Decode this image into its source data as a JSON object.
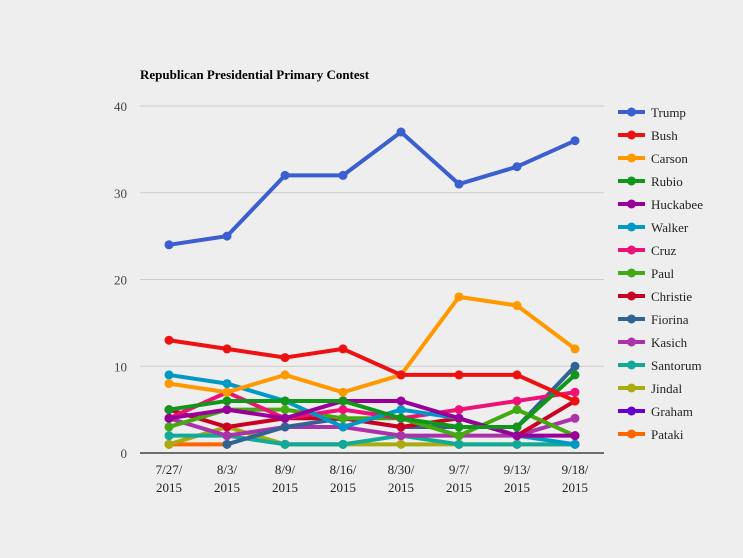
{
  "chart_data": {
    "type": "line",
    "title": "Republican Presidential Primary Contest",
    "xlabel": "",
    "ylabel": "",
    "ylim": [
      0,
      40
    ],
    "yticks": [
      0,
      10,
      20,
      30,
      40
    ],
    "grid": true,
    "legend": "right",
    "categories": [
      [
        "7/27/",
        "2015"
      ],
      [
        "8/3/",
        "2015"
      ],
      [
        "8/9/",
        "2015"
      ],
      [
        "8/16/",
        "2015"
      ],
      [
        "8/30/",
        "2015"
      ],
      [
        "9/7/",
        "2015"
      ],
      [
        "9/13/",
        "2015"
      ],
      [
        "9/18/",
        "2015"
      ]
    ],
    "series": [
      {
        "name": "Trump",
        "color": "#3b5fcf",
        "values": [
          24,
          25,
          32,
          32,
          37,
          31,
          33,
          36
        ]
      },
      {
        "name": "Bush",
        "color": "#ee1111",
        "values": [
          13,
          12,
          11,
          12,
          9,
          9,
          9,
          6
        ]
      },
      {
        "name": "Carson",
        "color": "#ff9900",
        "values": [
          8,
          7,
          9,
          7,
          9,
          18,
          17,
          12
        ]
      },
      {
        "name": "Rubio",
        "color": "#109618",
        "values": [
          5,
          6,
          6,
          6,
          4,
          3,
          3,
          9
        ]
      },
      {
        "name": "Huckabee",
        "color": "#990099",
        "values": [
          4,
          5,
          4,
          6,
          6,
          4,
          2,
          2
        ]
      },
      {
        "name": "Walker",
        "color": "#0099c6",
        "values": [
          9,
          8,
          6,
          3,
          5,
          4,
          2,
          1
        ]
      },
      {
        "name": "Cruz",
        "color": "#ee1177",
        "values": [
          4,
          7,
          4,
          5,
          4,
          5,
          6,
          7
        ]
      },
      {
        "name": "Paul",
        "color": "#44aa11",
        "values": [
          3,
          5,
          5,
          4,
          4,
          2,
          5,
          2
        ]
      },
      {
        "name": "Christie",
        "color": "#cc0022",
        "values": [
          5,
          3,
          4,
          4,
          3,
          4,
          2,
          6
        ]
      },
      {
        "name": "Fiorina",
        "color": "#316395",
        "values": [
          null,
          1,
          3,
          4,
          3,
          3,
          3,
          10
        ]
      },
      {
        "name": "Kasich",
        "color": "#aa33aa",
        "values": [
          4,
          2,
          3,
          3,
          2,
          2,
          2,
          4
        ]
      },
      {
        "name": "Santorum",
        "color": "#11aa99",
        "values": [
          2,
          2,
          1,
          1,
          2,
          1,
          1,
          1
        ]
      },
      {
        "name": "Jindal",
        "color": "#aaaa11",
        "values": [
          1,
          3,
          1,
          1,
          1,
          1,
          1,
          1
        ]
      },
      {
        "name": "Graham",
        "color": "#6600cc",
        "values": [
          null,
          null,
          1,
          1,
          null,
          1,
          null,
          null
        ]
      },
      {
        "name": "Pataki",
        "color": "#ff6600",
        "values": [
          1,
          1,
          null,
          null,
          null,
          null,
          1,
          null
        ]
      }
    ]
  }
}
